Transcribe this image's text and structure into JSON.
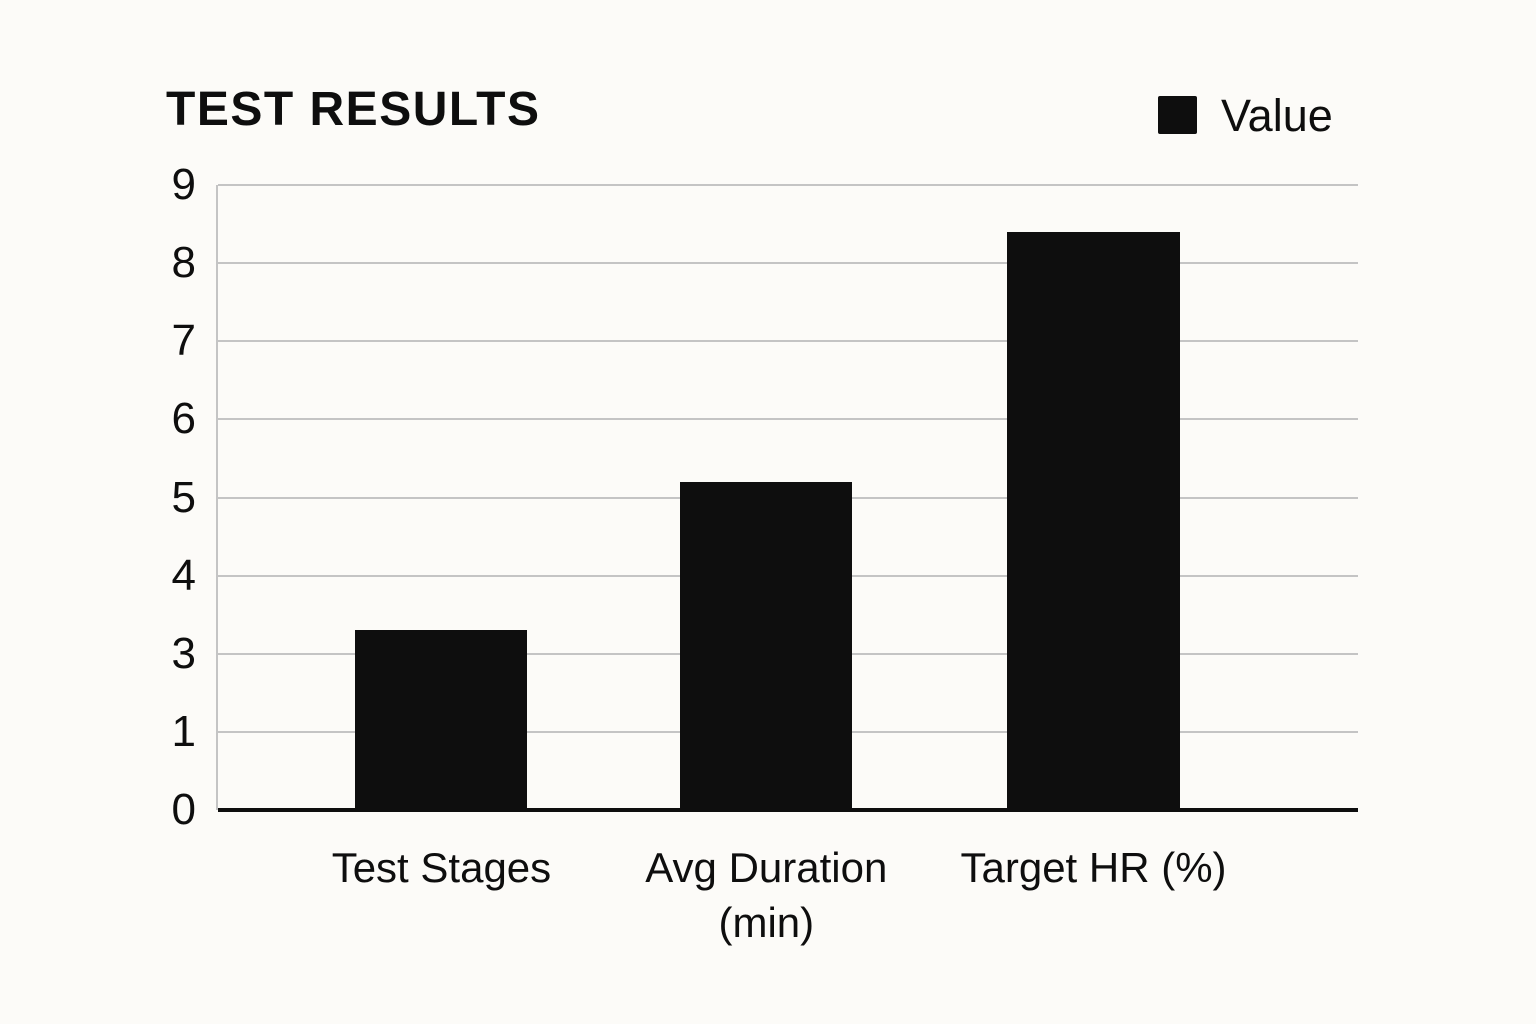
{
  "colors": {
    "bg": "#fcfbf8",
    "ink": "#0e0e0e",
    "bar": "#0e0e0e",
    "grid": "#c4c4c4"
  },
  "chart_data": {
    "type": "bar",
    "title": "TEST RESULTS",
    "categories": [
      "Test Stages",
      "Avg Duration (min)",
      "Target HR (%)"
    ],
    "series": [
      {
        "name": "Value",
        "values": [
          3.3,
          5.2,
          8.4
        ]
      }
    ],
    "y_axis": {
      "ticks": [
        0,
        1,
        3,
        4,
        5,
        6,
        7,
        8,
        9
      ],
      "note": "tick labels evenly spaced exactly as printed; label 2 is absent from the axis"
    },
    "grid": "horizontal",
    "legend_position": "top-right",
    "legend": [
      {
        "label": "Value",
        "color": "#0e0e0e"
      }
    ],
    "layout": {
      "bar_centers_frac": [
        0.196,
        0.481,
        0.768
      ],
      "bar_width_frac": 0.151
    }
  }
}
